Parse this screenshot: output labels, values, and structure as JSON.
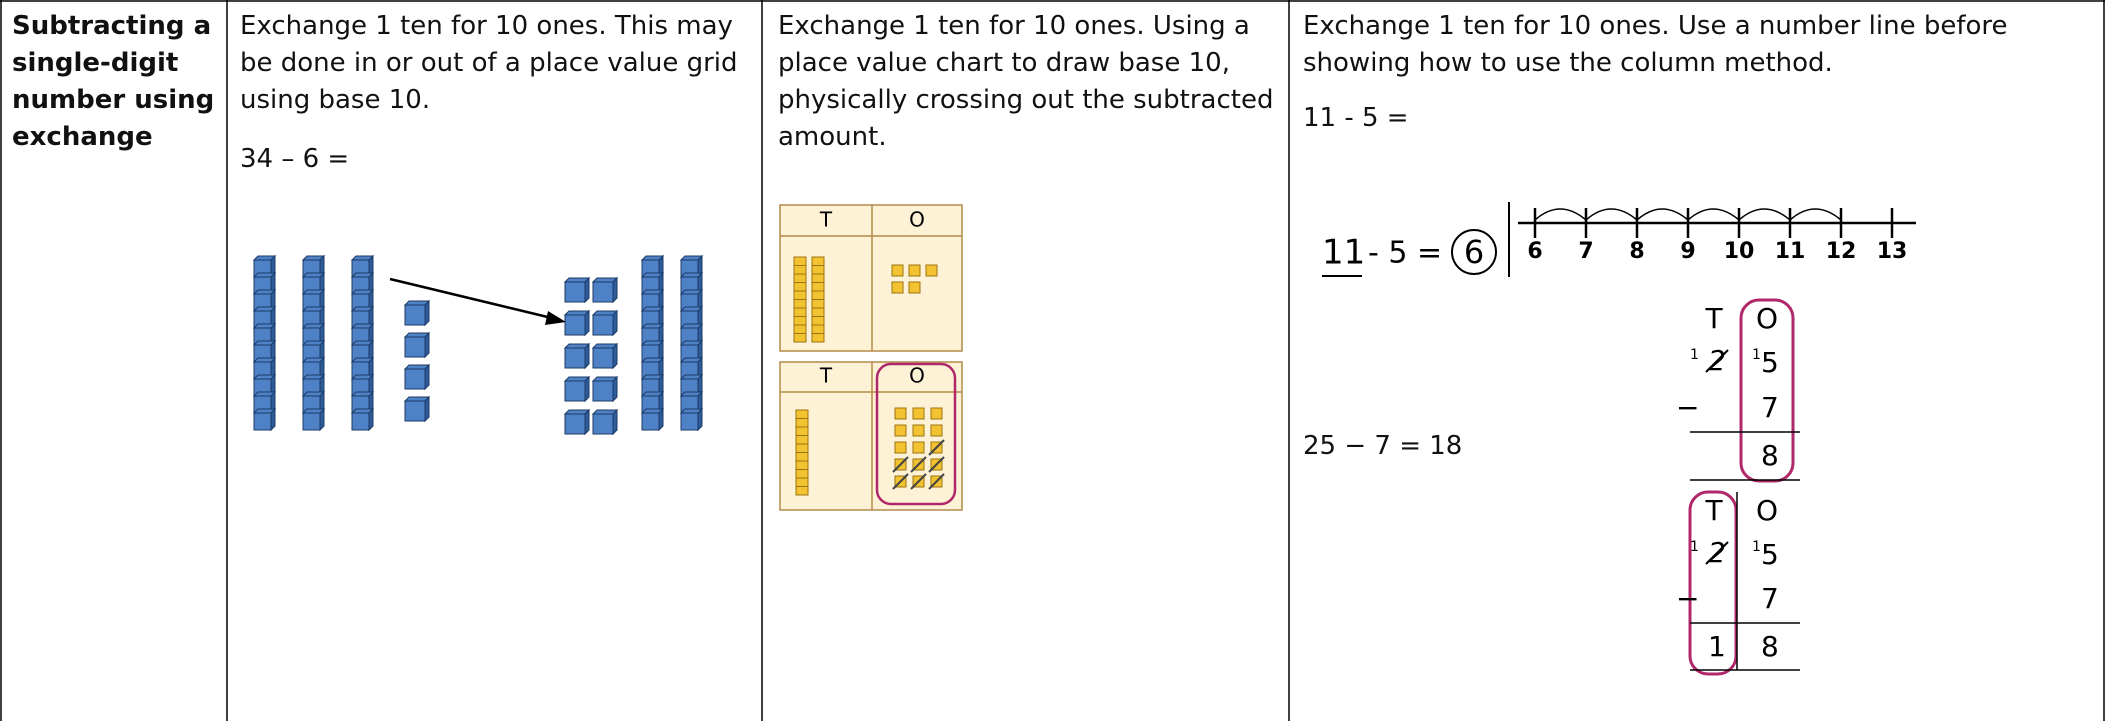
{
  "heading": "Subtracting a single-digit number using exchange",
  "columns": [
    {
      "text": "Exchange 1 ten for 10 ones. This may be done in or out of a place value grid using base 10.",
      "equation": "34 – 6 ="
    },
    {
      "text": "Exchange 1 ten for 10 ones. Using a place value chart to draw base 10, physically crossing out the subtracted amount.",
      "grid_headers": [
        "T",
        "O"
      ]
    },
    {
      "text": "Exchange 1 ten for 10 ones. Use a number line before showing how to use the column method.",
      "equation": "11 - 5 =",
      "handwritten": {
        "minuend": "11",
        "rest": "- 5 =",
        "answer": "6"
      },
      "number_line": [
        6,
        7,
        8,
        9,
        10,
        11,
        12,
        13
      ],
      "column_equation": "25 − 7 = 18",
      "column_method": {
        "headers": [
          "T",
          "O"
        ],
        "exchange": [
          "1",
          "1"
        ],
        "minuend": [
          "2",
          "5"
        ],
        "sign": "−",
        "subtrahend": "7",
        "result_step1": "8",
        "result_step2": [
          "1",
          "8"
        ]
      }
    }
  ]
}
